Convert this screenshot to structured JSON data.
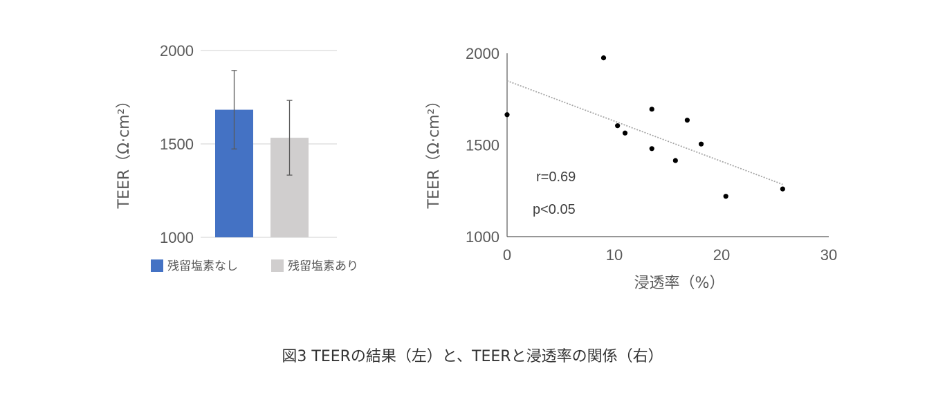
{
  "caption": "図3 TEERの結果（左）と、TEERと浸透率の関係（右）",
  "colors": {
    "bar_no_chlorine": "#4472C4",
    "bar_with_chlorine": "#D0CECE",
    "gridline": "#D9D9D9",
    "axis": "#595959",
    "trendline": "#A6A6A6",
    "point": "#000000"
  },
  "chart_data": [
    {
      "type": "bar",
      "title": "",
      "ylabel": "TEER（Ω·cm²）",
      "ylim": [
        1000,
        2000
      ],
      "yticks": [
        "1000",
        "1500",
        "2000"
      ],
      "gridlines": true,
      "legend_position": "bottom-left",
      "categories": [
        "残留塩素なし",
        "残留塩素あり"
      ],
      "values": [
        1683,
        1533
      ],
      "error": [
        210,
        200
      ],
      "legend": [
        "残留塩素なし",
        "残留塩素あり"
      ]
    },
    {
      "type": "scatter",
      "title": "",
      "xlabel": "浸透率（%）",
      "ylabel": "TEER（Ω·cm²）",
      "xlim": [
        0,
        30
      ],
      "ylim": [
        1000,
        2000
      ],
      "xticks": [
        "0",
        "10",
        "20",
        "30"
      ],
      "yticks": [
        "1000",
        "1500",
        "2000"
      ],
      "gridlines": false,
      "trendline": true,
      "points": [
        {
          "x": 0,
          "y": 1665
        },
        {
          "x": 9,
          "y": 1975
        },
        {
          "x": 10.3,
          "y": 1605
        },
        {
          "x": 11,
          "y": 1565
        },
        {
          "x": 13.5,
          "y": 1695
        },
        {
          "x": 13.5,
          "y": 1480
        },
        {
          "x": 15.7,
          "y": 1415
        },
        {
          "x": 16.8,
          "y": 1635
        },
        {
          "x": 18.1,
          "y": 1505
        },
        {
          "x": 20.4,
          "y": 1220
        },
        {
          "x": 25.7,
          "y": 1260
        }
      ],
      "fit": {
        "x": [
          0,
          25.7
        ],
        "y": [
          1850,
          1285
        ]
      },
      "annotations": [
        "r=0.69",
        "p<0.05"
      ]
    }
  ]
}
